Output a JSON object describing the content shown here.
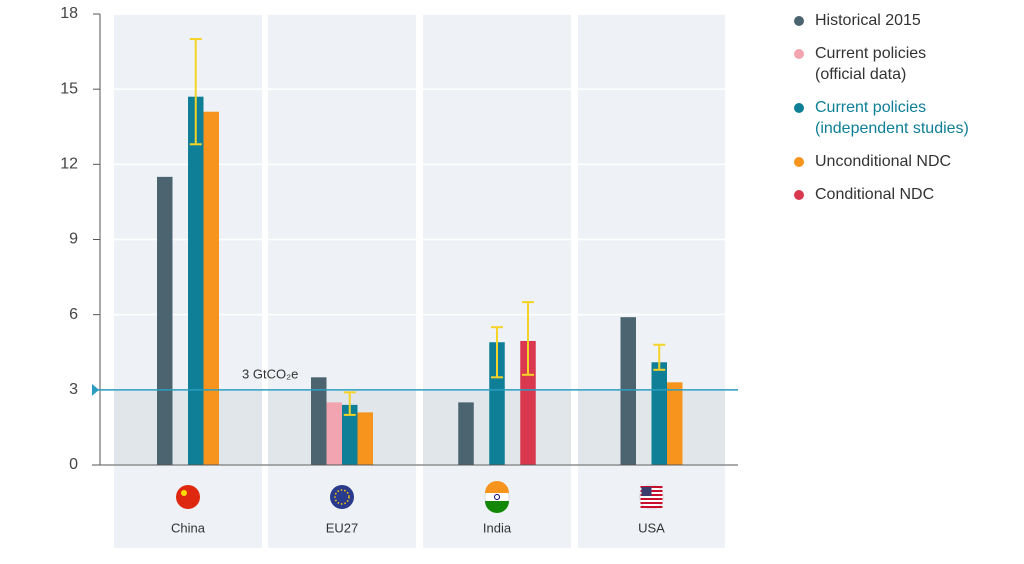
{
  "chart_data": {
    "type": "bar",
    "categories": [
      "China",
      "EU27",
      "India",
      "USA"
    ],
    "series": [
      {
        "name": "Historical 2015",
        "color": "#4b6470",
        "values": [
          11.5,
          3.5,
          2.5,
          5.9
        ]
      },
      {
        "name": "Current policies (official data)",
        "color": "#f2a5b0",
        "values": [
          null,
          2.5,
          null,
          null
        ]
      },
      {
        "name": "Current policies (independent studies)",
        "color": "#0e7f96",
        "values": [
          14.7,
          2.4,
          4.9,
          4.1
        ],
        "errors": [
          [
            12.8,
            17.0
          ],
          [
            2.0,
            2.9
          ],
          [
            3.5,
            5.5
          ],
          [
            3.8,
            4.8
          ]
        ]
      },
      {
        "name": "Unconditional NDC",
        "color": "#f7941d",
        "values": [
          14.1,
          2.1,
          null,
          3.3
        ]
      },
      {
        "name": "Conditional NDC",
        "color": "#d9384e",
        "values": [
          null,
          null,
          4.95,
          null
        ],
        "errors": [
          null,
          null,
          [
            3.6,
            6.5
          ],
          null
        ]
      }
    ],
    "ylim": [
      0,
      18
    ],
    "yticks": [
      0,
      3,
      6,
      9,
      12,
      15,
      18
    ],
    "grid": true,
    "error_color": "#f5d328",
    "reference_line": {
      "value": 3,
      "label": "3 GtCO₂e",
      "color": "#2a9dc0"
    },
    "highlighted_series": 2,
    "legend_position": "right"
  }
}
